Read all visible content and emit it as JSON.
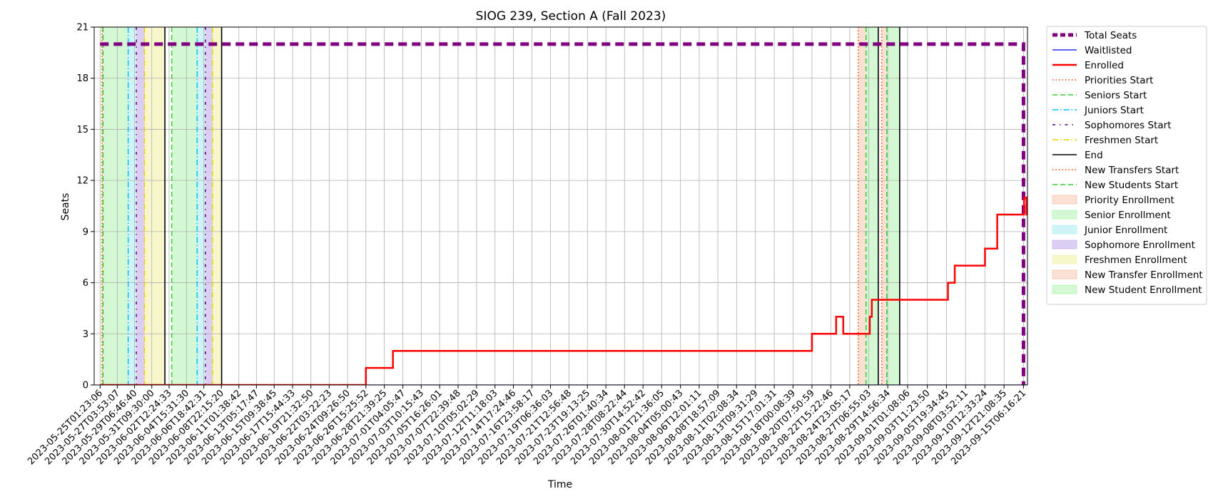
{
  "chart_data": {
    "type": "line",
    "title": "SIOG 239, Section A (Fall 2023)",
    "xlabel": "Time",
    "ylabel": "Seats",
    "ylim": [
      0,
      21
    ],
    "yticks": [
      0,
      3,
      6,
      9,
      12,
      15,
      18,
      21
    ],
    "x_range": [
      "2023-05-24T08:00:00",
      "2023-09-15T18:00:00"
    ],
    "x_scale": "time",
    "grid": true,
    "legend_position": "outside-right",
    "xtick_labels": [
      "2023-05-25T01:23:06",
      "2023-05-27T03:53:07",
      "2023-05-29T06:46:40",
      "2023-05-31T09:30:00",
      "2023-06-02T12:24:33",
      "2023-06-04T15:31:30",
      "2023-06-06T18:42:31",
      "2023-06-08T22:15:20",
      "2023-06-11T01:38:42",
      "2023-06-13T05:17:47",
      "2023-06-15T09:38:45",
      "2023-06-17T15:44:33",
      "2023-06-19T21:32:50",
      "2023-06-22T03:22:23",
      "2023-06-24T09:26:50",
      "2023-06-26T15:25:52",
      "2023-06-28T21:39:25",
      "2023-07-01T04:05:47",
      "2023-07-03T10:15:43",
      "2023-07-05T16:26:01",
      "2023-07-07T22:39:48",
      "2023-07-10T05:02:29",
      "2023-07-12T11:18:03",
      "2023-07-14T17:24:46",
      "2023-07-16T23:58:17",
      "2023-07-19T06:36:03",
      "2023-07-21T12:56:48",
      "2023-07-23T19:13:25",
      "2023-07-26T01:40:34",
      "2023-07-28T08:22:44",
      "2023-07-30T14:52:42",
      "2023-08-01T21:36:05",
      "2023-08-04T05:00:43",
      "2023-08-06T12:01:11",
      "2023-08-08T18:57:09",
      "2023-08-11T02:08:34",
      "2023-08-13T09:31:29",
      "2023-08-15T17:01:31",
      "2023-08-18T00:08:39",
      "2023-08-20T07:50:59",
      "2023-08-22T15:22:46",
      "2023-08-24T23:05:17",
      "2023-08-27T06:55:03",
      "2023-08-29T14:56:34",
      "2023-09-01T01:08:06",
      "2023-09-03T11:23:50",
      "2023-09-05T19:34:45",
      "2023-09-08T03:52:11",
      "2023-09-10T12:33:24",
      "2023-09-12T21:08:35",
      "2023-09-15T06:16:21"
    ],
    "series": [
      {
        "name": "Total Seats",
        "color": "#800080",
        "style": "dashed",
        "points": [
          [
            "2023-05-25T01:23:06",
            20
          ],
          [
            "2023-09-15T06:16:21",
            20
          ],
          [
            "2023-09-15T06:16:21",
            0
          ]
        ]
      },
      {
        "name": "Waitlisted",
        "color": "#0000ff",
        "style": "solid",
        "points": [
          [
            "2023-05-25T01:23:06",
            0
          ],
          [
            "2023-09-15T18:00:00",
            0
          ]
        ]
      },
      {
        "name": "Enrolled",
        "color": "#ff0000",
        "style": "step",
        "points": [
          [
            "2023-05-25T01:23:06",
            0
          ],
          [
            "2023-06-26T15:25:52",
            1
          ],
          [
            "2023-06-29T23:00:00",
            2
          ],
          [
            "2023-08-20T07:50:59",
            3
          ],
          [
            "2023-08-23T07:00:00",
            4
          ],
          [
            "2023-08-24T04:00:00",
            3
          ],
          [
            "2023-08-27T10:00:00",
            4
          ],
          [
            "2023-08-27T16:00:00",
            5
          ],
          [
            "2023-09-02T22:00:00",
            5
          ],
          [
            "2023-09-06T00:00:00",
            6
          ],
          [
            "2023-09-06T20:00:00",
            7
          ],
          [
            "2023-09-10T13:00:00",
            8
          ],
          [
            "2023-09-12T01:00:00",
            10
          ],
          [
            "2023-09-15T08:00:00",
            11
          ],
          [
            "2023-09-15T15:00:00",
            10
          ]
        ]
      }
    ],
    "markers": [
      {
        "name": "Priorities Start",
        "color": "#ff4500",
        "style": "dotted",
        "times": [
          "2023-05-25T07:00:00",
          "2023-08-26T00:00:00"
        ]
      },
      {
        "name": "Seniors Start",
        "color": "#32cd32",
        "style": "dashed",
        "times": [
          "2023-05-25T10:00:00",
          "2023-06-02T20:00:00",
          "2023-08-26T23:00:00"
        ]
      },
      {
        "name": "Juniors Start",
        "color": "#00bfff",
        "style": "dashdot",
        "times": [
          "2023-05-28T12:00:00",
          "2023-06-05T23:00:00"
        ]
      },
      {
        "name": "Sophomores Start",
        "color": "#4b0082",
        "style": "dashdot2",
        "times": [
          "2023-05-29T12:00:00",
          "2023-06-06T23:00:00"
        ]
      },
      {
        "name": "Freshmen Start",
        "color": "#e6d200",
        "style": "dashdot",
        "times": [
          "2023-05-30T12:00:00",
          "2023-06-07T20:00:00"
        ]
      },
      {
        "name": "End",
        "color": "#000000",
        "style": "solid",
        "times": [
          "2023-06-02T00:00:00",
          "2023-06-08T23:00:00",
          "2023-08-28T11:00:00",
          "2023-08-31T02:00:00"
        ]
      },
      {
        "name": "New Transfers Start",
        "color": "#ff4500",
        "style": "dotted",
        "times": [
          "2023-08-28T21:00:00"
        ]
      },
      {
        "name": "New Students Start",
        "color": "#32cd32",
        "style": "dashed",
        "times": [
          "2023-08-29T12:00:00"
        ]
      }
    ],
    "shaded_regions": [
      {
        "name": "Priority Enrollment",
        "color": "#f4a582",
        "opacity": 0.35,
        "intervals": [
          [
            "2023-05-25T07:00:00",
            "2023-05-25T10:00:00"
          ],
          [
            "2023-08-26T00:00:00",
            "2023-08-26T23:00:00"
          ]
        ]
      },
      {
        "name": "Senior Enrollment",
        "color": "#90ee90",
        "opacity": 0.4,
        "intervals": [
          [
            "2023-05-25T10:00:00",
            "2023-05-28T12:00:00"
          ],
          [
            "2023-06-02T20:00:00",
            "2023-06-05T23:00:00"
          ],
          [
            "2023-08-26T23:00:00",
            "2023-08-28T11:00:00"
          ]
        ]
      },
      {
        "name": "Junior Enrollment",
        "color": "#9ee9f0",
        "opacity": 0.5,
        "intervals": [
          [
            "2023-05-28T12:00:00",
            "2023-05-29T12:00:00"
          ],
          [
            "2023-06-05T23:00:00",
            "2023-06-06T23:00:00"
          ]
        ]
      },
      {
        "name": "Sophomore Enrollment",
        "color": "#b99be8",
        "opacity": 0.5,
        "intervals": [
          [
            "2023-05-29T12:00:00",
            "2023-05-30T12:00:00"
          ],
          [
            "2023-06-06T23:00:00",
            "2023-06-07T20:00:00"
          ]
        ]
      },
      {
        "name": "Freshmen Enrollment",
        "color": "#f0f0a0",
        "opacity": 0.55,
        "intervals": [
          [
            "2023-05-30T12:00:00",
            "2023-06-02T00:00:00"
          ],
          [
            "2023-06-07T20:00:00",
            "2023-06-08T23:00:00"
          ]
        ]
      },
      {
        "name": "New Transfer Enrollment",
        "color": "#f4a582",
        "opacity": 0.35,
        "intervals": [
          [
            "2023-08-28T21:00:00",
            "2023-08-29T12:00:00"
          ]
        ]
      },
      {
        "name": "New Student Enrollment",
        "color": "#90ee90",
        "opacity": 0.4,
        "intervals": [
          [
            "2023-08-29T12:00:00",
            "2023-08-31T02:00:00"
          ]
        ]
      }
    ],
    "legend": [
      {
        "label": "Total Seats",
        "kind": "line",
        "color": "#800080",
        "style": "dashed",
        "width": 5
      },
      {
        "label": "Waitlisted",
        "kind": "line",
        "color": "#0000ff",
        "style": "solid",
        "width": 1.3
      },
      {
        "label": "Enrolled",
        "kind": "line",
        "color": "#ff0000",
        "style": "solid",
        "width": 2.5
      },
      {
        "label": "Priorities Start",
        "kind": "line",
        "color": "#ff4500",
        "style": "dotted",
        "width": 1.5
      },
      {
        "label": "Seniors Start",
        "kind": "line",
        "color": "#32cd32",
        "style": "dashed",
        "width": 1.5
      },
      {
        "label": "Juniors Start",
        "kind": "line",
        "color": "#00bfff",
        "style": "dashdot",
        "width": 1.5
      },
      {
        "label": "Sophomores Start",
        "kind": "line",
        "color": "#4b0082",
        "style": "dashdot2",
        "width": 1.5
      },
      {
        "label": "Freshmen Start",
        "kind": "line",
        "color": "#e6d200",
        "style": "dashdot",
        "width": 1.5
      },
      {
        "label": "End",
        "kind": "line",
        "color": "#000000",
        "style": "solid",
        "width": 1.5
      },
      {
        "label": "New Transfers Start",
        "kind": "line",
        "color": "#ff4500",
        "style": "dotted",
        "width": 1.5
      },
      {
        "label": "New Students Start",
        "kind": "line",
        "color": "#32cd32",
        "style": "dashed",
        "width": 1.5
      },
      {
        "label": "Priority Enrollment",
        "kind": "patch",
        "color": "#f4a582",
        "opacity": 0.35
      },
      {
        "label": "Senior Enrollment",
        "kind": "patch",
        "color": "#90ee90",
        "opacity": 0.4
      },
      {
        "label": "Junior Enrollment",
        "kind": "patch",
        "color": "#9ee9f0",
        "opacity": 0.5
      },
      {
        "label": "Sophomore Enrollment",
        "kind": "patch",
        "color": "#b99be8",
        "opacity": 0.5
      },
      {
        "label": "Freshmen Enrollment",
        "kind": "patch",
        "color": "#f0f0a0",
        "opacity": 0.55
      },
      {
        "label": "New Transfer Enrollment",
        "kind": "patch",
        "color": "#f4a582",
        "opacity": 0.35
      },
      {
        "label": "New Student Enrollment",
        "kind": "patch",
        "color": "#90ee90",
        "opacity": 0.4
      }
    ]
  }
}
